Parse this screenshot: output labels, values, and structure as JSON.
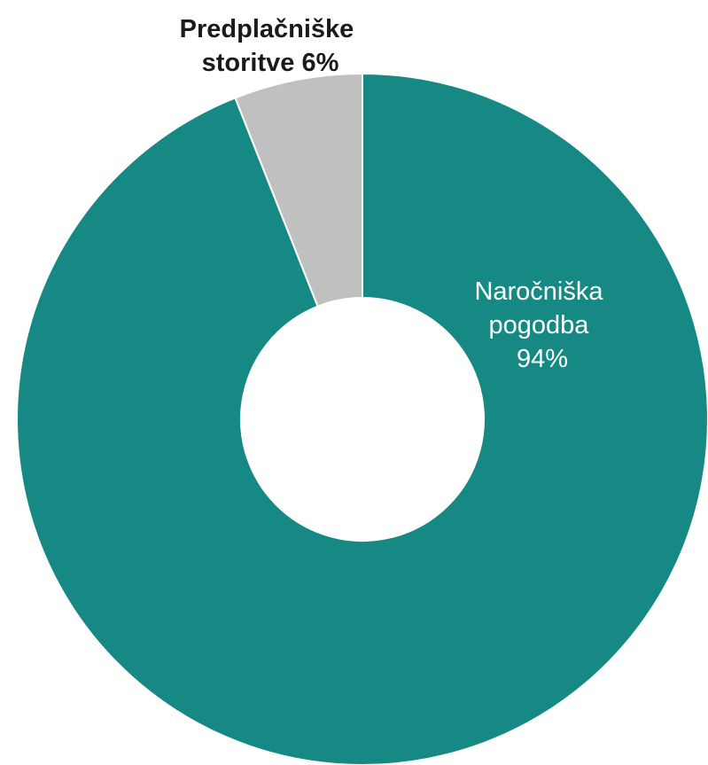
{
  "chart_data": {
    "type": "pie",
    "variant": "donut",
    "categories": [
      "Naročniška pogodba",
      "Predplačniške storitve"
    ],
    "values": [
      94,
      6
    ],
    "unit": "%",
    "title": "",
    "colors": [
      "#168985",
      "#c0c0c0"
    ],
    "label_colors": [
      "#ffffff",
      "#1a1a1a"
    ],
    "labels": [
      {
        "lines": [
          "Naročniška",
          "pogodba",
          "94%"
        ]
      },
      {
        "lines": [
          "Predplačniške",
          "storitve 6%"
        ]
      }
    ],
    "legend": "none"
  }
}
